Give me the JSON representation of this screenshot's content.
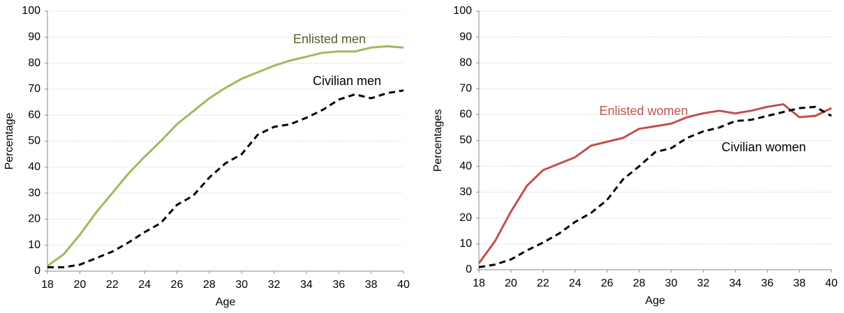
{
  "chart_data": [
    {
      "type": "line",
      "xlabel": "Age",
      "ylabel": "Percentage",
      "x": [
        18,
        19,
        20,
        21,
        22,
        23,
        24,
        25,
        26,
        27,
        28,
        29,
        30,
        31,
        32,
        33,
        34,
        35,
        36,
        37,
        38,
        39,
        40
      ],
      "xlim": [
        18,
        40
      ],
      "xticks": [
        18,
        20,
        22,
        24,
        26,
        28,
        30,
        32,
        34,
        36,
        38,
        40
      ],
      "ylim": [
        0,
        100
      ],
      "yticks": [
        0,
        10,
        20,
        30,
        40,
        50,
        60,
        70,
        80,
        90,
        100
      ],
      "grid": true,
      "series": [
        {
          "name": "Enlisted men",
          "color": "#9bbb59",
          "dashed": false,
          "values": [
            2,
            6.5,
            14,
            22.5,
            30,
            37.5,
            44,
            50,
            56.5,
            61.5,
            66.5,
            70.5,
            74,
            76.5,
            79,
            81,
            82.5,
            84,
            84.5,
            84.5,
            86,
            86.5,
            86
          ]
        },
        {
          "name": "Civilian men",
          "color": "#000000",
          "dashed": true,
          "values": [
            1.5,
            1.5,
            2.5,
            5,
            7.5,
            11,
            15,
            18.5,
            25.5,
            29,
            36,
            41.5,
            45,
            52.5,
            55.5,
            56.5,
            59,
            62,
            66,
            68,
            66.5,
            68.5,
            69.5
          ]
        }
      ]
    },
    {
      "type": "line",
      "xlabel": "Age",
      "ylabel": "Percentages",
      "x": [
        18,
        19,
        20,
        21,
        22,
        23,
        24,
        25,
        26,
        27,
        28,
        29,
        30,
        31,
        32,
        33,
        34,
        35,
        36,
        37,
        38,
        39,
        40
      ],
      "xlim": [
        18,
        40
      ],
      "xticks": [
        18,
        20,
        22,
        24,
        26,
        28,
        30,
        32,
        34,
        36,
        38,
        40
      ],
      "ylim": [
        0,
        100
      ],
      "yticks": [
        0,
        10,
        20,
        30,
        40,
        50,
        60,
        70,
        80,
        90,
        100
      ],
      "grid": true,
      "series": [
        {
          "name": "Enlisted women",
          "color": "#c0504d",
          "dashed": false,
          "values": [
            2.5,
            11,
            22.5,
            32.5,
            38.5,
            41,
            43.5,
            48,
            49.5,
            51,
            54.5,
            55.5,
            56.5,
            59,
            60.5,
            61.5,
            60.5,
            61.5,
            63,
            64,
            59,
            59.5,
            62.5
          ]
        },
        {
          "name": "Civilian women",
          "color": "#000000",
          "dashed": true,
          "values": [
            1,
            2,
            4,
            7.5,
            10.5,
            14,
            18.5,
            22,
            27,
            35,
            40,
            45.5,
            47,
            51,
            53.5,
            55,
            57.5,
            58,
            59.5,
            61,
            62.5,
            63,
            59.5
          ]
        }
      ]
    }
  ]
}
